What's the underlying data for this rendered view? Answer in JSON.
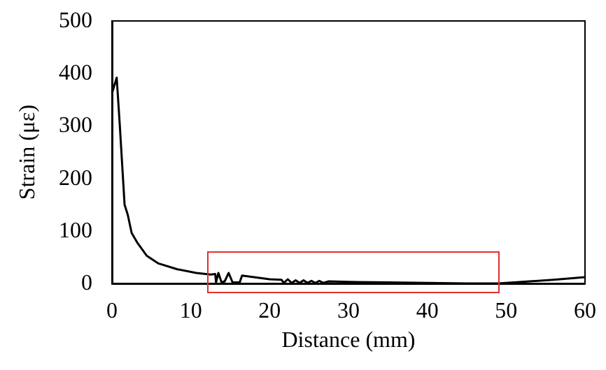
{
  "chart_data": {
    "type": "line",
    "xlabel": "Distance (mm)",
    "ylabel": "Strain (με)",
    "xlim": [
      0,
      60
    ],
    "ylim": [
      0,
      500
    ],
    "xticks": [
      0,
      10,
      20,
      30,
      40,
      50,
      60
    ],
    "yticks": [
      0,
      100,
      200,
      300,
      400,
      500
    ],
    "grid": false,
    "marker": "none",
    "line_style": "solid",
    "series": [
      {
        "color": "#000000",
        "x": [
          0,
          0.6,
          1.0,
          1.6,
          2.0,
          2.5,
          3.2,
          4.4,
          5.9,
          8.3,
          10.7,
          12.5,
          13.1,
          13.2,
          13.5,
          13.9,
          14.3,
          14.8,
          15.3,
          16.2,
          16.5,
          18,
          20,
          21.5,
          21.8,
          22.3,
          22.8,
          23.3,
          23.8,
          24.3,
          24.8,
          25.3,
          25.8,
          26.3,
          26.8,
          27.5,
          30,
          35,
          40,
          45,
          49,
          52,
          56,
          60
        ],
        "values": [
          362,
          392,
          300,
          150,
          131,
          96,
          78,
          53,
          38,
          27,
          20,
          17,
          18,
          2,
          20,
          2,
          4,
          20,
          2,
          2,
          15,
          12,
          8,
          7,
          1,
          8,
          1,
          6,
          1,
          6,
          1,
          5,
          1,
          5,
          1,
          4,
          3,
          2,
          1,
          0,
          0,
          3,
          7,
          12
        ]
      }
    ]
  }
}
